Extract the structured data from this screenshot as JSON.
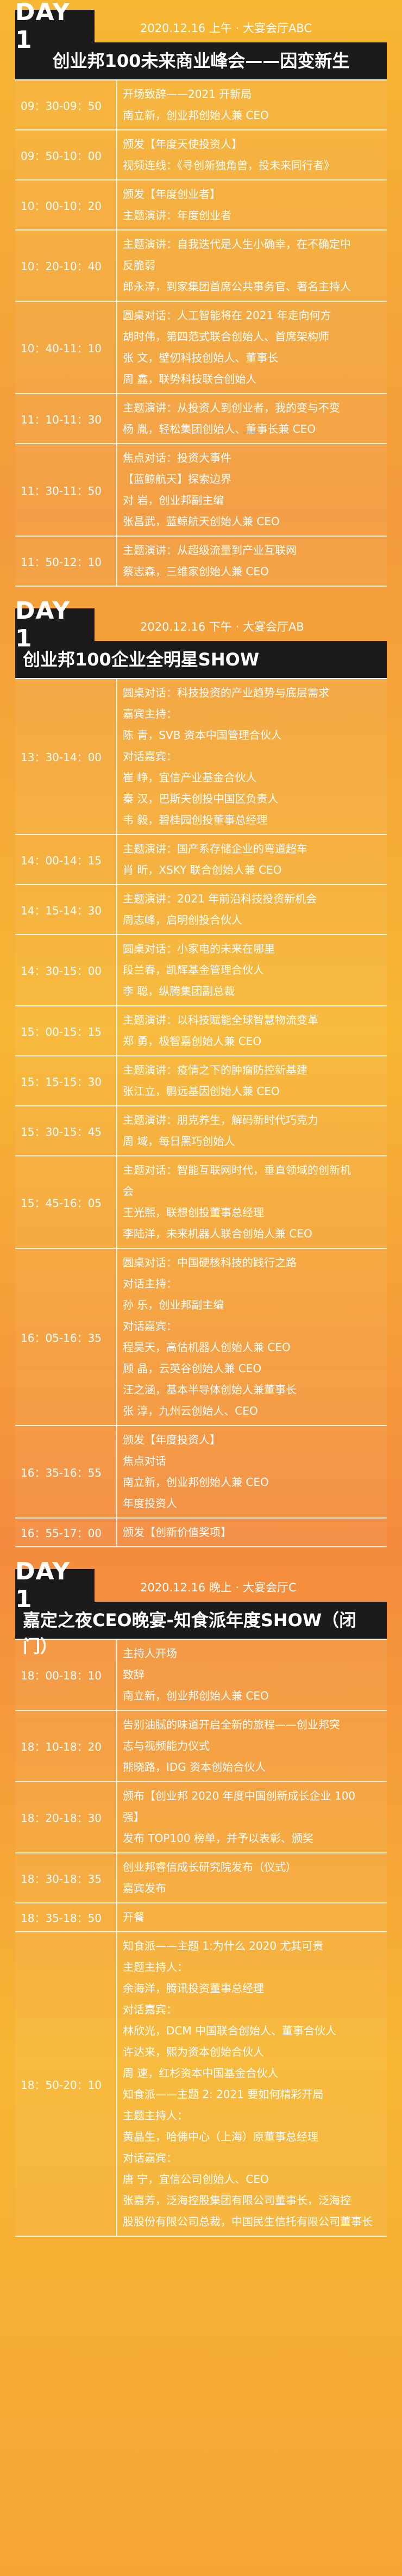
{
  "sections": [
    {
      "day": "DAY 1",
      "meta": "2020.12.16 上午 · 大宴会厅ABC",
      "title": "创业邦100未来商业峰会——因变新生",
      "rows": [
        {
          "time": "09：30-09：50",
          "lines": [
            "开场致辞——2021 开新局",
            "南立新，创业邦创始人兼 CEO"
          ]
        },
        {
          "time": "09：50-10：00",
          "lines": [
            "颁发【年度天使投资人】",
            "视频连线：《寻创新独角兽，投未来同行者》"
          ]
        },
        {
          "time": "10：00-10：20",
          "lines": [
            "颁发【年度创业者】",
            "主题演讲：年度创业者"
          ]
        },
        {
          "time": "10：20-10：40",
          "lines": [
            "主题演讲：自我迭代是人生小确幸，在不确定中",
            "反脆弱",
            "郎永淳，到家集团首席公共事务官、著名主持人"
          ]
        },
        {
          "time": "10：40-11：10",
          "lines": [
            "圆桌对话：人工智能将在 2021 年走向何方",
            "胡时伟，第四范式联合创始人、首席架构师",
            "张  文，壁仞科技创始人、董事长",
            "周  鑫，联势科技联合创始人"
          ]
        },
        {
          "time": "11：10-11：30",
          "lines": [
            "主题演讲：从投资人到创业者，我的变与不变",
            "杨  胤，轻松集团创始人、董事长兼 CEO"
          ]
        },
        {
          "time": "11：30-11：50",
          "lines": [
            "焦点对话：投资大事件",
            "【蓝鲸航天】探索边界",
            "对  岩，创业邦副主编",
            "张昌武，蓝鲸航天创始人兼 CEO"
          ]
        },
        {
          "time": "11：50-12：10",
          "lines": [
            "主题演讲：从超级流量到产业互联网",
            "蔡志森，三维家创始人兼 CEO"
          ]
        }
      ]
    },
    {
      "day": "DAY 1",
      "meta": "2020.12.16 下午 · 大宴会厅AB",
      "title": "创业邦100企业全明星SHOW",
      "rows": [
        {
          "time": "13：30-14：00",
          "lines": [
            "圆桌对话：科技投资的产业趋势与底层需求",
            "嘉宾主持：",
            "陈  青，SVB 资本中国管理合伙人",
            "对话嘉宾：",
            "崔  峥，宜信产业基金合伙人",
            "秦  汉，巴斯夫创投中国区负责人",
            "韦  毅，碧桂园创投董事总经理"
          ]
        },
        {
          "time": "14：00-14：15",
          "lines": [
            "主题演讲：国产系存储企业的弯道超车",
            "肖  昕，XSKY 联合创始人兼 CEO"
          ]
        },
        {
          "time": "14：15-14：30",
          "lines": [
            "主题演讲：2021 年前沿科技投资新机会",
            "周志峰，启明创投合伙人"
          ]
        },
        {
          "time": "14：30-15：00",
          "lines": [
            "圆桌对话：小家电的未来在哪里",
            "段兰春，凯辉基金管理合伙人",
            "李  聪，纵腾集团副总裁"
          ]
        },
        {
          "time": "15：00-15：15",
          "lines": [
            "主题演讲：以科技赋能全球智慧物流变革",
            "郑  勇，极智嘉创始人兼 CEO"
          ]
        },
        {
          "time": "15：15-15：30",
          "lines": [
            "主题演讲：疫情之下的肿瘤防控新基建",
            "张江立，鹏远基因创始人兼 CEO"
          ]
        },
        {
          "time": "15：30-15：45",
          "lines": [
            "主题演讲：朋克养生，解码新时代巧克力",
            "周  域，每日黑巧创始人"
          ]
        },
        {
          "time": "15：45-16：05",
          "lines": [
            "主题对话：智能互联网时代，垂直领域的创新机",
            "会",
            "王光熙，联想创投董事总经理",
            "李陆洋，未来机器人联合创始人兼 CEO"
          ]
        },
        {
          "time": "16：05-16：35",
          "lines": [
            "圆桌对话：中国硬核科技的践行之路",
            "对话主持：",
            "孙  乐，创业邦副主编",
            "对话嘉宾：",
            "程昊天，高估机器人创始人兼 CEO",
            "顾  晶，云英谷创始人兼 CEO",
            "汪之涵，基本半导体创始人兼董事长",
            "张  淳，九州云创始人、CEO"
          ]
        },
        {
          "time": "16：35-16：55",
          "lines": [
            "颁发【年度投资人】",
            "焦点对话",
            "南立新，创业邦创始人兼 CEO",
            "年度投资人"
          ]
        },
        {
          "time": "16：55-17：00",
          "lines": [
            "颁发【创新价值奖项】"
          ]
        }
      ]
    },
    {
      "day": "DAY 1",
      "meta": "2020.12.16 晚上 · 大宴会厅C",
      "title": "嘉定之夜CEO晚宴-知食派年度SHOW（闭门）",
      "rows": [
        {
          "time": "18：00-18：10",
          "lines": [
            "主持人开场",
            "致辞",
            "南立新，创业邦创始人兼 CEO"
          ]
        },
        {
          "time": "18：10-18：20",
          "lines": [
            "告别油腻的味道开启全新的旅程——创业邦突",
            "志与视频能力仪式",
            "熊晓路，IDG 资本创始合伙人"
          ]
        },
        {
          "time": "18：20-18：30",
          "lines": [
            "颁布【创业邦 2020 年度中国创新成长企业 100",
            "强】",
            "发布 TOP100 榜单，并予以表彰、颁奖"
          ]
        },
        {
          "time": "18：30-18：35",
          "lines": [
            "创业邦睿信成长研究院发布（仪式）",
            "嘉宾发布"
          ]
        },
        {
          "time": "18：35-18：50",
          "lines": [
            "开餐"
          ]
        },
        {
          "time": "18：50-20：10",
          "lines": [
            "知食派——主题 1:为什么 2020 尤其可贵",
            "主题主持人：",
            "余海洋，腾讯投资董事总经理",
            "对话嘉宾：",
            "林欣光，DCM 中国联合创始人、董事合伙人",
            "许达来，熙为资本创始合伙人",
            "周  速，红杉资本中国基金合伙人",
            "知食派——主题 2: 2021 要如何精彩开局",
            "主题主持人：",
            "黄晶生，哈佛中心（上海）原董事总经理",
            "对话嘉宾：",
            "唐  宁，宜信公司创始人、CEO",
            "张嘉芳，泛海控股集团有限公司董事长，泛海控",
            "股股份有限公司总裁，中国民生信托有限公司董事长"
          ]
        }
      ]
    }
  ]
}
